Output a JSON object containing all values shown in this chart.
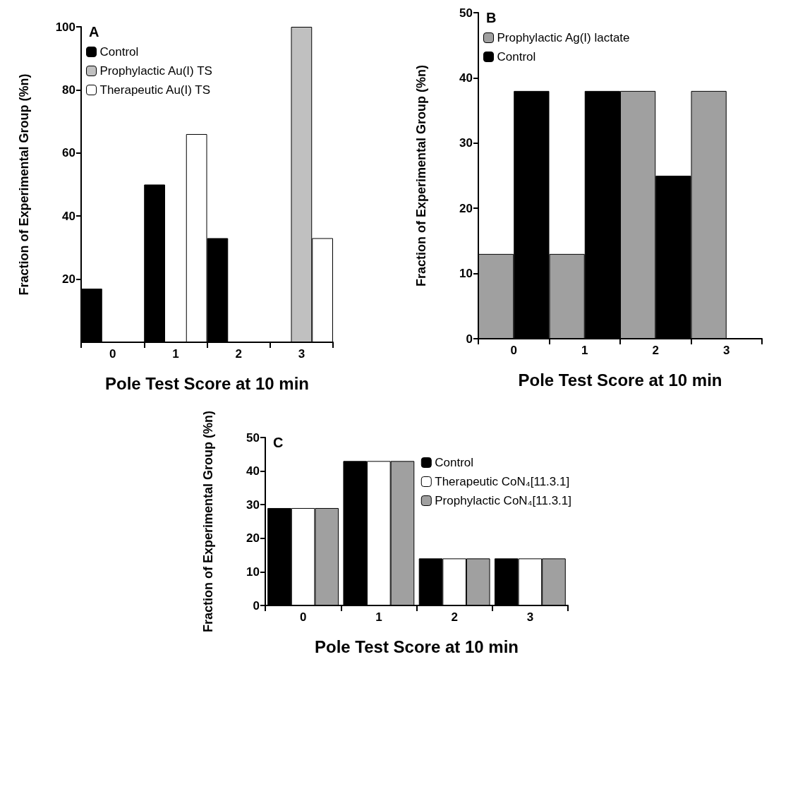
{
  "chart_data": [
    {
      "type": "bar",
      "title": "A",
      "xlabel": "Pole Test Score at 10 min",
      "ylabel": "Fraction of Experimental Group (%n)",
      "categories": [
        "0",
        "1",
        "2",
        "3"
      ],
      "ylim": [
        0,
        100
      ],
      "yticks": [
        20,
        40,
        60,
        80,
        100
      ],
      "grid": false,
      "legend": "top left",
      "series": [
        {
          "name": "Control",
          "color": "#000000",
          "values": [
            17,
            50,
            33,
            0
          ]
        },
        {
          "name": "Prophylactic Au(I) TS",
          "color": "#c0c0c0",
          "values": [
            0,
            0,
            0,
            100
          ]
        },
        {
          "name": "Therapeutic Au(I) TS",
          "color": "#ffffff",
          "values": [
            0,
            66,
            0,
            33
          ]
        }
      ]
    },
    {
      "type": "bar",
      "title": "B",
      "xlabel": "Pole Test Score at 10 min",
      "ylabel": "Fraction of Experimental Group (%n)",
      "categories": [
        "0",
        "1",
        "2",
        "3"
      ],
      "ylim": [
        0,
        50
      ],
      "yticks": [
        0,
        10,
        20,
        30,
        40,
        50
      ],
      "grid": false,
      "legend": "top left",
      "series": [
        {
          "name": "Prophylactic Ag(I) lactate",
          "color": "#a0a0a0",
          "values": [
            13,
            13,
            38,
            38
          ]
        },
        {
          "name": "Control",
          "color": "#000000",
          "values": [
            38,
            38,
            25,
            0
          ]
        }
      ]
    },
    {
      "type": "bar",
      "title": "C",
      "xlabel": "Pole Test Score at 10 min",
      "ylabel": "Fraction of Experimental Group (%n)",
      "categories": [
        "0",
        "1",
        "2",
        "3"
      ],
      "ylim": [
        0,
        50
      ],
      "yticks": [
        0,
        10,
        20,
        30,
        40,
        50
      ],
      "grid": false,
      "legend": "top right",
      "series": [
        {
          "name": "Control",
          "color": "#000000",
          "values": [
            29,
            43,
            14,
            14
          ]
        },
        {
          "name": "Therapeutic CoN₄[11.3.1]",
          "color": "#ffffff",
          "values": [
            29,
            43,
            14,
            14
          ]
        },
        {
          "name": "Prophylactic CoN₄[11.3.1]",
          "color": "#a0a0a0",
          "values": [
            29,
            43,
            14,
            14
          ]
        }
      ]
    }
  ]
}
